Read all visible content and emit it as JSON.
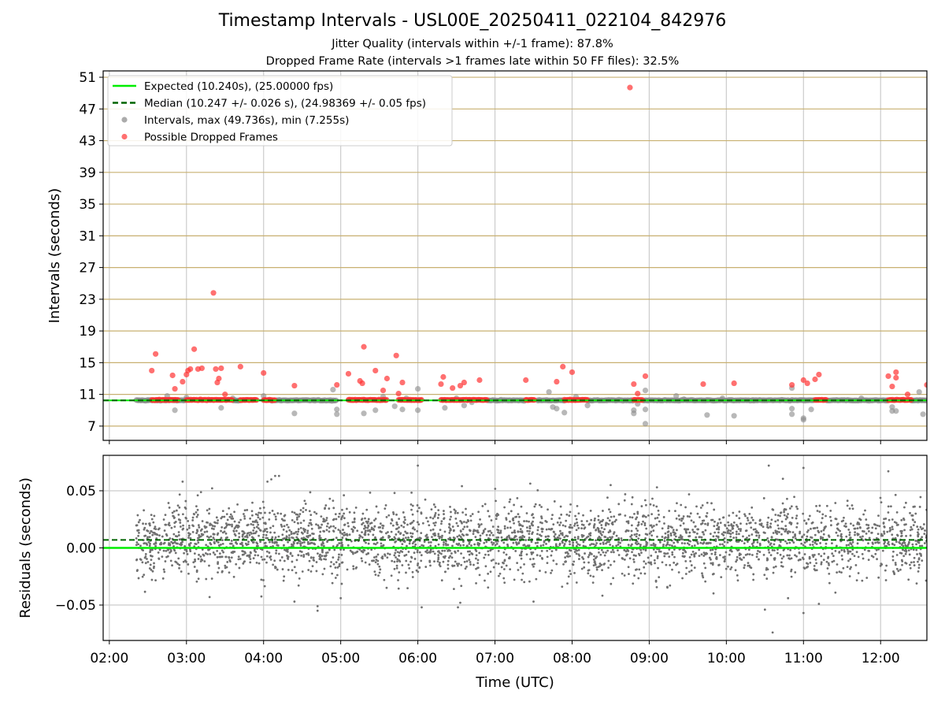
{
  "chart_data": {
    "title": "Timestamp Intervals - USL00E_20250411_022104_842976",
    "subtitle_lines": [
      "Jitter Quality (intervals within +/-1 frame): 87.8%",
      "Dropped Frame Rate (intervals >1 frames late within 50 FF files): 32.5%"
    ],
    "panels": [
      {
        "name": "intervals",
        "type": "scatter",
        "ylabel": "Intervals (seconds)",
        "ylim": [
          5.2,
          51.8
        ],
        "yticks": [
          "7",
          "11",
          "15",
          "19",
          "23",
          "27",
          "31",
          "35",
          "39",
          "43",
          "47",
          "51"
        ],
        "ytick_values": [
          7,
          11,
          15,
          19,
          23,
          27,
          31,
          35,
          39,
          43,
          47,
          51
        ],
        "grid": "horizontal goldenrod + vertical gray",
        "legend_position": "upper-left",
        "legend": [
          {
            "label": "Expected (10.240s), (25.00000 fps)",
            "kind": "line",
            "color": "#00ee00"
          },
          {
            "label": "Median (10.247 +/- 0.026 s), (24.98369 +/- 0.05 fps)",
            "kind": "dashed",
            "color": "#006400"
          },
          {
            "label": "Intervals, max (49.736s), min (7.255s)",
            "kind": "dot",
            "color": "#888888"
          },
          {
            "label": "Possible Dropped Frames",
            "kind": "dot",
            "color": "#ff3333"
          }
        ],
        "expected_line": 10.24,
        "median_line": 10.247,
        "interval_points": [
          [
            2.5,
            10.3
          ],
          [
            2.75,
            10.8
          ],
          [
            2.85,
            9.0
          ],
          [
            3.0,
            10.6
          ],
          [
            3.45,
            9.3
          ],
          [
            3.6,
            10.5
          ],
          [
            4.0,
            10.8
          ],
          [
            4.4,
            8.6
          ],
          [
            4.9,
            11.6
          ],
          [
            4.95,
            9.1
          ],
          [
            4.95,
            8.5
          ],
          [
            5.3,
            8.6
          ],
          [
            5.45,
            9.0
          ],
          [
            5.55,
            10.7
          ],
          [
            5.7,
            9.5
          ],
          [
            5.8,
            9.1
          ],
          [
            5.85,
            10.5
          ],
          [
            6.0,
            11.7
          ],
          [
            6.0,
            9.0
          ],
          [
            6.35,
            9.3
          ],
          [
            6.5,
            10.5
          ],
          [
            6.6,
            9.6
          ],
          [
            6.7,
            10.0
          ],
          [
            7.7,
            11.3
          ],
          [
            7.75,
            9.4
          ],
          [
            7.8,
            9.2
          ],
          [
            7.9,
            8.7
          ],
          [
            8.05,
            10.7
          ],
          [
            8.2,
            9.6
          ],
          [
            8.8,
            9.0
          ],
          [
            8.8,
            8.6
          ],
          [
            8.85,
            9.8
          ],
          [
            8.95,
            11.5
          ],
          [
            8.95,
            9.1
          ],
          [
            8.95,
            7.3
          ],
          [
            9.35,
            10.8
          ],
          [
            9.45,
            10.4
          ],
          [
            9.75,
            8.4
          ],
          [
            9.95,
            10.5
          ],
          [
            10.1,
            8.3
          ],
          [
            10.35,
            10.3
          ],
          [
            10.85,
            11.8
          ],
          [
            10.85,
            9.2
          ],
          [
            10.85,
            8.5
          ],
          [
            11.0,
            8.0
          ],
          [
            11.0,
            7.8
          ],
          [
            11.1,
            9.1
          ],
          [
            11.75,
            10.5
          ],
          [
            12.15,
            9.4
          ],
          [
            12.15,
            8.9
          ],
          [
            12.2,
            8.9
          ],
          [
            12.5,
            11.3
          ],
          [
            12.55,
            8.5
          ]
        ],
        "dropped_points": [
          [
            2.55,
            14.0
          ],
          [
            2.6,
            16.1
          ],
          [
            2.82,
            13.4
          ],
          [
            2.85,
            11.7
          ],
          [
            2.95,
            12.6
          ],
          [
            3.0,
            13.5
          ],
          [
            3.02,
            14.0
          ],
          [
            3.05,
            14.2
          ],
          [
            3.1,
            16.7
          ],
          [
            3.15,
            14.2
          ],
          [
            3.2,
            14.3
          ],
          [
            3.35,
            23.8
          ],
          [
            3.38,
            14.2
          ],
          [
            3.4,
            12.5
          ],
          [
            3.42,
            13.0
          ],
          [
            3.45,
            14.3
          ],
          [
            3.5,
            11.0
          ],
          [
            3.7,
            14.5
          ],
          [
            4.0,
            13.7
          ],
          [
            4.4,
            12.1
          ],
          [
            4.95,
            12.2
          ],
          [
            5.1,
            13.6
          ],
          [
            5.25,
            12.7
          ],
          [
            5.28,
            12.4
          ],
          [
            5.3,
            17.0
          ],
          [
            5.45,
            14.0
          ],
          [
            5.55,
            11.5
          ],
          [
            5.6,
            13.0
          ],
          [
            5.72,
            15.9
          ],
          [
            5.75,
            11.1
          ],
          [
            5.8,
            12.5
          ],
          [
            6.3,
            12.3
          ],
          [
            6.33,
            13.2
          ],
          [
            6.45,
            11.8
          ],
          [
            6.55,
            12.1
          ],
          [
            6.6,
            12.5
          ],
          [
            6.8,
            12.8
          ],
          [
            7.4,
            12.8
          ],
          [
            7.8,
            12.6
          ],
          [
            7.88,
            14.5
          ],
          [
            8.0,
            13.8
          ],
          [
            8.8,
            12.3
          ],
          [
            8.85,
            11.1
          ],
          [
            8.95,
            13.3
          ],
          [
            9.7,
            12.3
          ],
          [
            10.1,
            12.4
          ],
          [
            10.85,
            12.2
          ],
          [
            11.0,
            12.8
          ],
          [
            11.05,
            12.4
          ],
          [
            11.15,
            12.9
          ],
          [
            11.2,
            13.5
          ],
          [
            12.1,
            13.3
          ],
          [
            12.15,
            12.0
          ],
          [
            12.2,
            13.8
          ],
          [
            12.2,
            13.1
          ],
          [
            12.35,
            11.0
          ],
          [
            12.6,
            12.2
          ],
          [
            8.75,
            49.7
          ]
        ],
        "dropped_clusters": [
          [
            2.55,
            2.9
          ],
          [
            3.0,
            3.6
          ],
          [
            3.7,
            3.92
          ],
          [
            4.0,
            4.15
          ],
          [
            5.1,
            5.6
          ],
          [
            5.75,
            6.05
          ],
          [
            6.3,
            6.9
          ],
          [
            7.4,
            7.52
          ],
          [
            7.9,
            8.2
          ],
          [
            8.8,
            8.92
          ],
          [
            11.15,
            11.3
          ],
          [
            12.1,
            12.4
          ]
        ],
        "interval_clusters": [
          [
            2.35,
            3.0
          ],
          [
            3.6,
            3.7
          ],
          [
            4.1,
            4.95
          ],
          [
            6.9,
            7.4
          ],
          [
            7.55,
            7.9
          ],
          [
            8.2,
            8.8
          ],
          [
            8.92,
            11.15
          ],
          [
            11.3,
            12.1
          ],
          [
            12.4,
            12.6
          ]
        ]
      },
      {
        "name": "residuals",
        "type": "scatter",
        "ylabel": "Residuals (seconds)",
        "ylim": [
          -0.081,
          0.081
        ],
        "yticks": [
          "0.05",
          "0.00",
          "−0.05"
        ],
        "ytick_values": [
          0.05,
          0.0,
          -0.05
        ],
        "expected_line": 0.0,
        "median_line": 0.007,
        "band": {
          "center": 0.007,
          "spread": 0.026
        },
        "outliers": [
          [
            2.95,
            0.058
          ],
          [
            4.1,
            0.06
          ],
          [
            4.15,
            0.063
          ],
          [
            4.2,
            0.063
          ],
          [
            4.05,
            0.058
          ],
          [
            6.0,
            0.072
          ],
          [
            6.55,
            -0.048
          ],
          [
            6.52,
            -0.052
          ],
          [
            4.7,
            -0.055
          ],
          [
            4.7,
            -0.051
          ],
          [
            3.3,
            -0.043
          ],
          [
            4.4,
            -0.047
          ],
          [
            10.55,
            0.072
          ],
          [
            10.6,
            -0.074
          ],
          [
            10.5,
            -0.054
          ],
          [
            10.8,
            -0.044
          ],
          [
            11.0,
            0.07
          ],
          [
            11.0,
            -0.057
          ],
          [
            11.2,
            -0.049
          ],
          [
            12.1,
            0.067
          ],
          [
            5.0,
            -0.044
          ],
          [
            7.5,
            -0.047
          ],
          [
            8.5,
            0.055
          ],
          [
            6.05,
            -0.052
          ],
          [
            9.1,
            0.053
          ]
        ]
      }
    ],
    "shared_x": {
      "xlabel": "Time (UTC)",
      "xlim_hours": [
        1.92,
        12.6
      ],
      "xticks": [
        "02:00",
        "03:00",
        "04:00",
        "05:00",
        "06:00",
        "07:00",
        "08:00",
        "09:00",
        "10:00",
        "11:00",
        "12:00"
      ],
      "xtick_hours": [
        2,
        3,
        4,
        5,
        6,
        7,
        8,
        9,
        10,
        11,
        12
      ],
      "data_start_hour": 2.35
    },
    "colors": {
      "expected": "#00ee00",
      "median": "#006400",
      "interval_dot": "#888888",
      "dropped_dot": "#ff3333",
      "residual_dot": "#707070",
      "h_grid": "#c8b070",
      "v_grid": "#cccccc"
    }
  }
}
